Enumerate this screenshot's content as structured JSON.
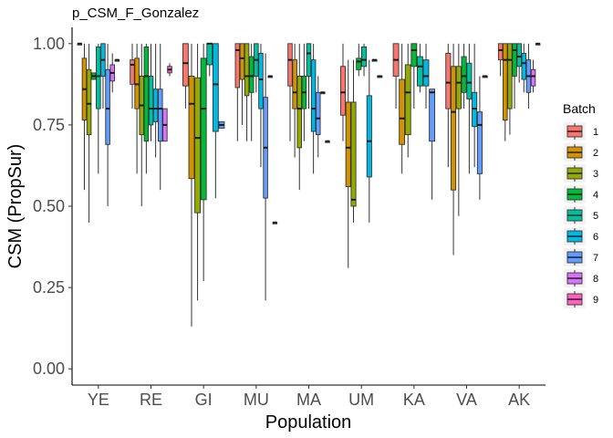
{
  "chart_data": {
    "type": "boxplot",
    "title": "p_CSM_F_Gonzalez",
    "xlabel": "Population",
    "ylabel": "CSM (PropSur)",
    "ylim": [
      -0.05,
      1.05
    ],
    "yticks": [
      0,
      0.25,
      0.5,
      0.75,
      1
    ],
    "ytick_labels": [
      "0.00",
      "0.25",
      "0.50",
      "0.75",
      "1.00"
    ],
    "categories": [
      "YE",
      "RE",
      "GI",
      "MU",
      "MA",
      "UM",
      "KA",
      "VA",
      "AK"
    ],
    "legend": {
      "title": "Batch",
      "position": "right",
      "entries": [
        "1",
        "2",
        "3",
        "4",
        "5",
        "6",
        "7",
        "8",
        "9"
      ],
      "colors": [
        "#F8766D",
        "#D39200",
        "#93AA00",
        "#00BA38",
        "#00C19F",
        "#00B9E3",
        "#619CFF",
        "#DB72FB",
        "#FF61C3"
      ]
    },
    "grid": false,
    "series": [
      {
        "category": "YE",
        "batches": [
          {
            "batch": "1",
            "min": 1.0,
            "q1": 1.0,
            "median": 1.0,
            "q3": 1.0,
            "max": 1.0
          },
          {
            "batch": "2",
            "min": 0.55,
            "q1": 0.765,
            "median": 0.86,
            "q3": 0.955,
            "max": 1.0
          },
          {
            "batch": "3",
            "min": 0.45,
            "q1": 0.72,
            "median": 0.815,
            "q3": 0.92,
            "max": 1.0
          },
          {
            "batch": "4",
            "min": 0.89,
            "q1": 0.89,
            "median": 0.9,
            "q3": 0.91,
            "max": 0.91
          },
          {
            "batch": "5",
            "min": 0.6,
            "q1": 0.8,
            "median": 0.9,
            "q3": 0.99,
            "max": 1.0
          },
          {
            "batch": "6",
            "min": 0.8,
            "q1": 0.9,
            "median": 0.95,
            "q3": 1.0,
            "max": 1.0
          },
          {
            "batch": "7",
            "min": 0.5,
            "q1": 0.69,
            "median": 0.8,
            "q3": 0.92,
            "max": 1.0
          },
          {
            "batch": "8",
            "min": 0.85,
            "q1": 0.885,
            "median": 0.91,
            "q3": 0.935,
            "max": 0.97
          },
          {
            "batch": "9",
            "min": 0.95,
            "q1": 0.95,
            "median": 0.95,
            "q3": 0.95,
            "max": 0.95
          }
        ]
      },
      {
        "category": "RE",
        "batches": [
          {
            "batch": "1",
            "min": 0.8,
            "q1": 0.875,
            "median": 0.935,
            "q3": 0.95,
            "max": 1.0
          },
          {
            "batch": "2",
            "min": 0.6,
            "q1": 0.8,
            "median": 0.875,
            "q3": 0.955,
            "max": 1.0
          },
          {
            "batch": "3",
            "min": 0.5,
            "q1": 0.72,
            "median": 0.81,
            "q3": 0.9,
            "max": 1.0
          },
          {
            "batch": "4",
            "min": 0.6,
            "q1": 0.7,
            "median": 0.9,
            "q3": 0.99,
            "max": 1.0
          },
          {
            "batch": "5",
            "min": 0.7,
            "q1": 0.75,
            "median": 0.8,
            "q3": 0.9,
            "max": 1.0
          },
          {
            "batch": "6",
            "min": 0.65,
            "q1": 0.76,
            "median": 0.8,
            "q3": 0.86,
            "max": 1.0
          },
          {
            "batch": "7",
            "min": 0.55,
            "q1": 0.7,
            "median": 0.8,
            "q3": 0.86,
            "max": 1.0
          },
          {
            "batch": "8",
            "min": 0.7,
            "q1": 0.7,
            "median": 0.75,
            "q3": 0.8,
            "max": 0.8
          },
          {
            "batch": "9",
            "min": 0.9,
            "q1": 0.91,
            "median": 0.92,
            "q3": 0.93,
            "max": 0.94
          }
        ]
      },
      {
        "category": "GI",
        "batches": [
          {
            "batch": "1",
            "min": 0.8,
            "q1": 0.87,
            "median": 0.94,
            "q3": 1.0,
            "max": 1.0
          },
          {
            "batch": "2",
            "min": 0.13,
            "q1": 0.585,
            "median": 0.815,
            "q3": 0.9,
            "max": 1.0
          },
          {
            "batch": "3",
            "min": 0.21,
            "q1": 0.48,
            "median": 0.71,
            "q3": 0.895,
            "max": 1.0
          },
          {
            "batch": "4",
            "min": 0.27,
            "q1": 0.52,
            "median": 0.8,
            "q3": 0.955,
            "max": 1.0
          },
          {
            "batch": "5",
            "min": 0.9,
            "q1": 0.935,
            "median": 1.0,
            "q3": 1.0,
            "max": 1.0
          },
          {
            "batch": "6",
            "min": 0.525,
            "q1": 0.73,
            "median": 0.875,
            "q3": 1.0,
            "max": 1.0
          },
          {
            "batch": "7",
            "min": 0.74,
            "q1": 0.74,
            "median": 0.75,
            "q3": 0.76,
            "max": 0.76
          }
        ]
      },
      {
        "category": "MU",
        "batches": [
          {
            "batch": "1",
            "min": 0.7,
            "q1": 0.865,
            "median": 0.98,
            "q3": 1.0,
            "max": 1.0
          },
          {
            "batch": "2",
            "min": 0.75,
            "q1": 0.89,
            "median": 0.955,
            "q3": 1.0,
            "max": 1.0
          },
          {
            "batch": "3",
            "min": 0.7,
            "q1": 0.84,
            "median": 0.9,
            "q3": 1.0,
            "max": 1.0
          },
          {
            "batch": "4",
            "min": 0.7,
            "q1": 0.85,
            "median": 0.9,
            "q3": 0.96,
            "max": 1.0
          },
          {
            "batch": "5",
            "min": 0.85,
            "q1": 0.9,
            "median": 0.95,
            "q3": 1.0,
            "max": 1.0
          },
          {
            "batch": "6",
            "min": 0.62,
            "q1": 0.8,
            "median": 0.89,
            "q3": 0.97,
            "max": 1.0
          },
          {
            "batch": "7",
            "min": 0.21,
            "q1": 0.525,
            "median": 0.68,
            "q3": 0.835,
            "max": 0.97
          },
          {
            "batch": "8",
            "min": 0.9,
            "q1": 0.9,
            "median": 0.9,
            "q3": 0.9,
            "max": 0.9
          },
          {
            "batch": "9",
            "min": 0.45,
            "q1": 0.45,
            "median": 0.45,
            "q3": 0.45,
            "max": 0.45
          }
        ]
      },
      {
        "category": "MA",
        "batches": [
          {
            "batch": "1",
            "min": 0.7,
            "q1": 0.87,
            "median": 0.95,
            "q3": 1.0,
            "max": 1.0
          },
          {
            "batch": "2",
            "min": 0.65,
            "q1": 0.8,
            "median": 0.85,
            "q3": 0.95,
            "max": 1.0
          },
          {
            "batch": "3",
            "min": 0.55,
            "q1": 0.68,
            "median": 0.8,
            "q3": 0.9,
            "max": 1.0
          },
          {
            "batch": "4",
            "min": 0.7,
            "q1": 0.8,
            "median": 0.85,
            "q3": 0.9,
            "max": 1.0
          },
          {
            "batch": "5",
            "min": 0.8,
            "q1": 0.9,
            "median": 0.97,
            "q3": 1.0,
            "max": 1.0
          },
          {
            "batch": "6",
            "min": 0.6,
            "q1": 0.73,
            "median": 0.8,
            "q3": 0.95,
            "max": 1.0
          },
          {
            "batch": "7",
            "min": 0.65,
            "q1": 0.72,
            "median": 0.77,
            "q3": 0.85,
            "max": 0.9
          },
          {
            "batch": "8",
            "min": 0.85,
            "q1": 0.85,
            "median": 0.85,
            "q3": 0.85,
            "max": 0.85
          },
          {
            "batch": "9",
            "min": 0.7,
            "q1": 0.7,
            "median": 0.7,
            "q3": 0.7,
            "max": 0.7
          }
        ]
      },
      {
        "category": "UM",
        "batches": [
          {
            "batch": "1",
            "min": 0.7,
            "q1": 0.78,
            "median": 0.85,
            "q3": 0.93,
            "max": 1.0
          },
          {
            "batch": "2",
            "min": 0.31,
            "q1": 0.56,
            "median": 0.68,
            "q3": 0.82,
            "max": 0.95
          },
          {
            "batch": "3",
            "min": 0.45,
            "q1": 0.5,
            "median": 0.52,
            "q3": 0.82,
            "max": 0.95
          },
          {
            "batch": "4",
            "min": 0.9,
            "q1": 0.92,
            "median": 0.945,
            "q3": 0.955,
            "max": 1.0
          },
          {
            "batch": "5",
            "min": 0.9,
            "q1": 0.93,
            "median": 0.95,
            "q3": 0.99,
            "max": 1.0
          },
          {
            "batch": "6",
            "min": 0.45,
            "q1": 0.59,
            "median": 0.7,
            "q3": 0.84,
            "max": 0.95
          },
          {
            "batch": "7",
            "min": 0.95,
            "q1": 0.95,
            "median": 0.95,
            "q3": 0.95,
            "max": 0.95
          },
          {
            "batch": "8",
            "min": 0.9,
            "q1": 0.9,
            "median": 0.9,
            "q3": 0.9,
            "max": 0.9
          }
        ]
      },
      {
        "category": "KA",
        "batches": [
          {
            "batch": "1",
            "min": 0.8,
            "q1": 0.9,
            "median": 0.95,
            "q3": 1.0,
            "max": 1.0
          },
          {
            "batch": "2",
            "min": 0.6,
            "q1": 0.69,
            "median": 0.77,
            "q3": 0.89,
            "max": 1.0
          },
          {
            "batch": "3",
            "min": 0.65,
            "q1": 0.72,
            "median": 0.85,
            "q3": 0.935,
            "max": 1.0
          },
          {
            "batch": "4",
            "min": 0.8,
            "q1": 0.93,
            "median": 0.98,
            "q3": 1.0,
            "max": 1.0
          },
          {
            "batch": "5",
            "min": 0.85,
            "q1": 0.87,
            "median": 0.93,
            "q3": 0.96,
            "max": 1.0
          },
          {
            "batch": "6",
            "min": 0.8,
            "q1": 0.87,
            "median": 0.9,
            "q3": 0.95,
            "max": 1.0
          },
          {
            "batch": "7",
            "min": 0.52,
            "q1": 0.7,
            "median": 0.85,
            "q3": 0.86,
            "max": 0.86
          }
        ]
      },
      {
        "category": "VA",
        "batches": [
          {
            "batch": "1",
            "min": 0.62,
            "q1": 0.8,
            "median": 0.88,
            "q3": 0.97,
            "max": 1.0
          },
          {
            "batch": "2",
            "min": 0.35,
            "q1": 0.55,
            "median": 0.79,
            "q3": 0.93,
            "max": 1.0
          },
          {
            "batch": "3",
            "min": 0.47,
            "q1": 0.8,
            "median": 0.88,
            "q3": 0.93,
            "max": 1.0
          },
          {
            "batch": "4",
            "min": 0.8,
            "q1": 0.85,
            "median": 0.9,
            "q3": 0.96,
            "max": 1.0
          },
          {
            "batch": "5",
            "min": 0.6,
            "q1": 0.83,
            "median": 0.88,
            "q3": 0.94,
            "max": 1.0
          },
          {
            "batch": "6",
            "min": 0.62,
            "q1": 0.745,
            "median": 0.8,
            "q3": 0.85,
            "max": 1.0
          },
          {
            "batch": "7",
            "min": 0.52,
            "q1": 0.6,
            "median": 0.75,
            "q3": 0.79,
            "max": 0.9
          },
          {
            "batch": "8",
            "min": 0.9,
            "q1": 0.9,
            "median": 0.9,
            "q3": 0.9,
            "max": 0.9
          }
        ]
      },
      {
        "category": "AK",
        "batches": [
          {
            "batch": "1",
            "min": 0.9,
            "q1": 0.95,
            "median": 0.98,
            "q3": 1.0,
            "max": 1.0
          },
          {
            "batch": "2",
            "min": 0.7,
            "q1": 0.765,
            "median": 0.95,
            "q3": 1.0,
            "max": 1.0
          },
          {
            "batch": "3",
            "min": 0.72,
            "q1": 0.8,
            "median": 0.95,
            "q3": 1.0,
            "max": 1.0
          },
          {
            "batch": "4",
            "min": 0.8,
            "q1": 0.9,
            "median": 0.98,
            "q3": 1.0,
            "max": 1.0
          },
          {
            "batch": "5",
            "min": 0.88,
            "q1": 0.93,
            "median": 0.96,
            "q3": 1.0,
            "max": 1.0
          },
          {
            "batch": "6",
            "min": 0.85,
            "q1": 0.89,
            "median": 0.94,
            "q3": 0.97,
            "max": 1.0
          },
          {
            "batch": "7",
            "min": 0.8,
            "q1": 0.85,
            "median": 0.9,
            "q3": 0.95,
            "max": 1.0
          },
          {
            "batch": "8",
            "min": 0.85,
            "q1": 0.87,
            "median": 0.9,
            "q3": 0.92,
            "max": 0.95
          },
          {
            "batch": "9",
            "min": 1.0,
            "q1": 1.0,
            "median": 1.0,
            "q3": 1.0,
            "max": 1.0
          }
        ]
      }
    ]
  }
}
